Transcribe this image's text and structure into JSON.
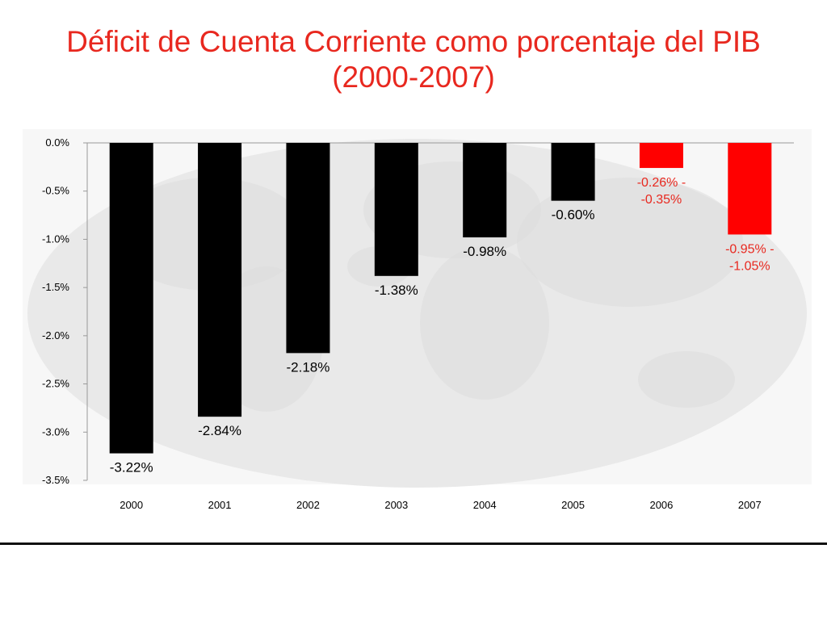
{
  "title": {
    "line1": "Déficit de Cuenta Corriente como porcentaje del PIB",
    "line2": "(2000-2007)"
  },
  "colors": {
    "title": "#e8281f",
    "bar_actual": "#000000",
    "bar_projected": "#ff0000",
    "label_projected": "#e8281f"
  },
  "chart_data": {
    "type": "bar",
    "categories": [
      "2000",
      "2001",
      "2002",
      "2003",
      "2004",
      "2005",
      "2006",
      "2007"
    ],
    "values": [
      -3.22,
      -2.84,
      -2.18,
      -1.38,
      -0.98,
      -0.6,
      -0.26,
      -0.95
    ],
    "data_labels": [
      [
        "-3.22%"
      ],
      [
        "-2.84%"
      ],
      [
        "-2.18%"
      ],
      [
        "-1.38%"
      ],
      [
        "-0.98%"
      ],
      [
        "-0.60%"
      ],
      [
        "-0.26% -",
        "-0.35%"
      ],
      [
        "-0.95% -",
        "-1.05%"
      ]
    ],
    "projected": [
      false,
      false,
      false,
      false,
      false,
      false,
      true,
      true
    ],
    "ylim": [
      -3.5,
      0
    ],
    "yticks": [
      0,
      -0.5,
      -1.0,
      -1.5,
      -2.0,
      -2.5,
      -3.0,
      -3.5
    ],
    "ytick_labels": [
      "0.0%",
      "-0.5%",
      "-1.0%",
      "-1.5%",
      "-2.0%",
      "-2.5%",
      "-3.0%",
      "-3.5%"
    ],
    "xlabel": "",
    "ylabel": "",
    "grid": false,
    "background": "world-map-watermark"
  }
}
